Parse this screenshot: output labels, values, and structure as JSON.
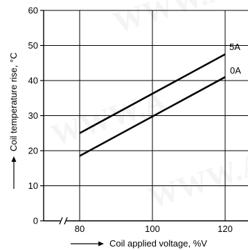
{
  "header_text": "Coil temperature rise, °C",
  "chart_data": {
    "type": "line",
    "title": "",
    "xlabel": "Coil applied voltage, %V",
    "ylabel": "Coil temperature rise, °C",
    "xlim": [
      80,
      120
    ],
    "ylim": [
      0,
      60
    ],
    "x_ticks": [
      80,
      100,
      120
    ],
    "y_ticks": [
      0,
      10,
      20,
      30,
      40,
      50,
      60
    ],
    "axis_break": "x",
    "grid": true,
    "legend": "inline labels at line ends",
    "series": [
      {
        "name": "5A",
        "x": [
          80,
          120
        ],
        "y": [
          25,
          47.5
        ]
      },
      {
        "name": "0A",
        "x": [
          80,
          120
        ],
        "y": [
          18.5,
          41
        ]
      }
    ],
    "watermark": "WWW.A"
  },
  "colors": {
    "line": "#000000",
    "grid": "#000000",
    "background": "#ffffff"
  }
}
